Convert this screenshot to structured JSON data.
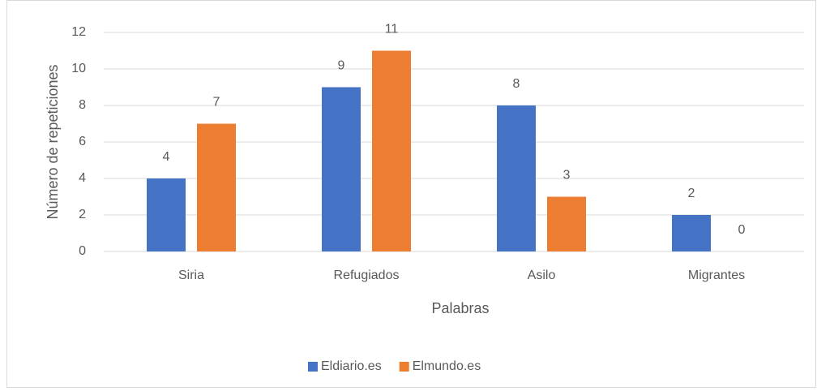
{
  "chart_data": {
    "type": "bar",
    "categories": [
      "Siria",
      "Refugiados",
      "Asilo",
      "Migrantes"
    ],
    "series": [
      {
        "name": "Eldiario.es",
        "color": "#4472c4",
        "values": [
          4,
          9,
          8,
          2
        ]
      },
      {
        "name": "Elmundo.es",
        "color": "#ed7d31",
        "values": [
          7,
          11,
          3,
          0
        ]
      }
    ],
    "x_label": "Palabras",
    "y_label": "Número de repeticiones",
    "ylim": [
      0,
      12
    ],
    "yticks": [
      0,
      2,
      4,
      6,
      8,
      10,
      12
    ],
    "grid": true,
    "legend": "bottom"
  }
}
